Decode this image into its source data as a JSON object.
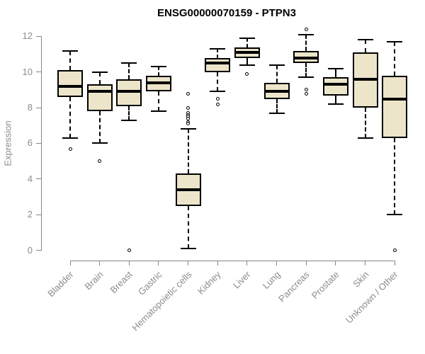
{
  "chart_data": {
    "type": "boxplot",
    "title": "ENSG00000070159 - PTPN3",
    "ylabel": "Expression",
    "xlabel": "",
    "ylim": [
      0,
      12
    ],
    "yticks": [
      0,
      2,
      4,
      6,
      8,
      10,
      12
    ],
    "grid": false,
    "legend": false,
    "categories": [
      "Bladder",
      "Brain",
      "Breast",
      "Gastric",
      "Hematopoietic cells",
      "Kidney",
      "Liver",
      "Lung",
      "Pancreas",
      "Prostate",
      "Skin",
      "Unknown / Other"
    ],
    "boxes": [
      {
        "category": "Bladder",
        "whisker_low": 6.3,
        "q1": 8.6,
        "median": 9.2,
        "q3": 10.1,
        "whisker_high": 11.2,
        "outliers": [
          5.7
        ]
      },
      {
        "category": "Brain",
        "whisker_low": 6.0,
        "q1": 7.8,
        "median": 8.9,
        "q3": 9.3,
        "whisker_high": 10.0,
        "outliers": [
          5.0
        ]
      },
      {
        "category": "Breast",
        "whisker_low": 7.3,
        "q1": 8.1,
        "median": 8.9,
        "q3": 9.6,
        "whisker_high": 10.5,
        "outliers": [
          0.0
        ]
      },
      {
        "category": "Gastric",
        "whisker_low": 7.8,
        "q1": 8.9,
        "median": 9.4,
        "q3": 9.8,
        "whisker_high": 10.3,
        "outliers": []
      },
      {
        "category": "Hematopoietic cells",
        "whisker_low": 0.1,
        "q1": 2.5,
        "median": 3.4,
        "q3": 4.3,
        "whisker_high": 6.8,
        "outliers": [
          8.8,
          8.0,
          7.7,
          7.6,
          7.5,
          7.4,
          7.2,
          7.1
        ]
      },
      {
        "category": "Kidney",
        "whisker_low": 8.9,
        "q1": 10.0,
        "median": 10.5,
        "q3": 10.8,
        "whisker_high": 11.3,
        "outliers": [
          8.5,
          8.2
        ]
      },
      {
        "category": "Liver",
        "whisker_low": 10.4,
        "q1": 10.8,
        "median": 11.1,
        "q3": 11.4,
        "whisker_high": 11.9,
        "outliers": [
          9.9
        ]
      },
      {
        "category": "Lung",
        "whisker_low": 7.7,
        "q1": 8.5,
        "median": 8.9,
        "q3": 9.4,
        "whisker_high": 10.4,
        "outliers": []
      },
      {
        "category": "Pancreas",
        "whisker_low": 9.7,
        "q1": 10.5,
        "median": 10.8,
        "q3": 11.2,
        "whisker_high": 12.1,
        "outliers": [
          12.4,
          9.0,
          8.8
        ]
      },
      {
        "category": "Prostate",
        "whisker_low": 8.2,
        "q1": 8.7,
        "median": 9.3,
        "q3": 9.7,
        "whisker_high": 10.2,
        "outliers": []
      },
      {
        "category": "Skin",
        "whisker_low": 6.3,
        "q1": 8.0,
        "median": 9.6,
        "q3": 11.1,
        "whisker_high": 11.8,
        "outliers": []
      },
      {
        "category": "Unknown / Other",
        "whisker_low": 2.0,
        "q1": 6.3,
        "median": 8.5,
        "q3": 9.8,
        "whisker_high": 11.7,
        "outliers": [
          0.0
        ]
      }
    ],
    "colors": {
      "box_fill": "#ece5ca",
      "box_border": "#000000",
      "whisker": "#000000",
      "axis": "#878787",
      "tick_label": "#8c8c8c",
      "title": "#000000",
      "background": "#ffffff"
    }
  }
}
